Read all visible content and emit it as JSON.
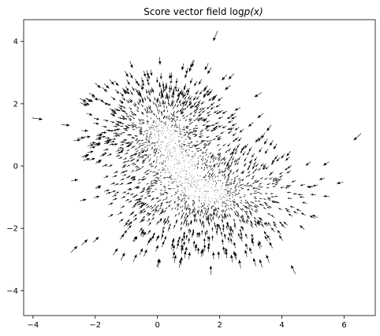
{
  "chart_data": {
    "type": "quiver",
    "title": "Score vector field log",
    "title_math": "p(x)",
    "xlabel": "",
    "ylabel": "",
    "xlim": [
      -4.3,
      7.0
    ],
    "ylim": [
      -4.8,
      4.7
    ],
    "xticks": [
      -4,
      -2,
      0,
      2,
      4,
      6
    ],
    "yticks": [
      -4,
      -2,
      0,
      2,
      4
    ],
    "grid": false,
    "legend": null,
    "clusters": [
      {
        "center": [
          0.2,
          1.1
        ],
        "spread": [
          1.0,
          0.9
        ],
        "count": 1100
      },
      {
        "center": [
          1.6,
          -0.9
        ],
        "spread": [
          1.3,
          0.85
        ],
        "count": 1300
      }
    ],
    "arrow_color": "#000000"
  }
}
